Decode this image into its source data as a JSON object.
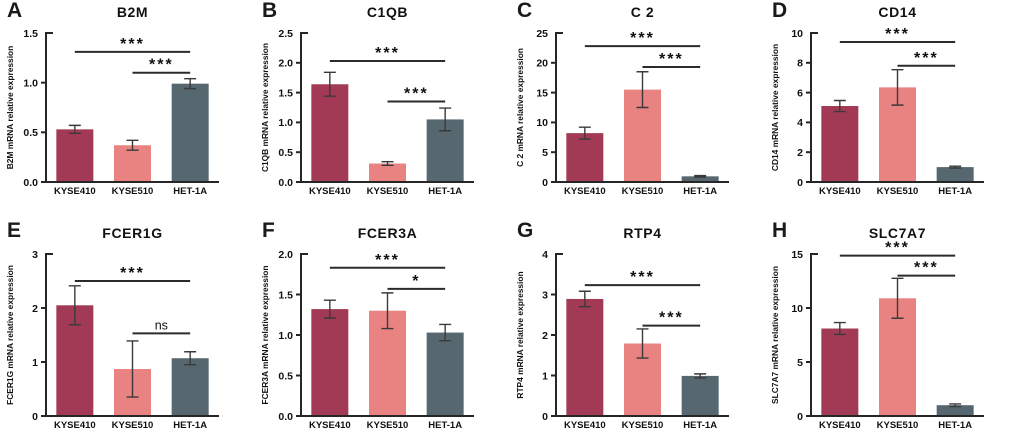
{
  "figure": {
    "description": "Eight-panel bar chart figure of mRNA relative expression in esophageal cell lines",
    "cell_lines": [
      "KYSE410",
      "KYSE510",
      "HET-1A"
    ],
    "colors": {
      "KYSE410": "#A33A55",
      "KYSE510": "#E98381",
      "HET-1A": "#56676F",
      "axis": "#262626",
      "error_bar": "#3a3a3a",
      "text": "#111111"
    }
  },
  "chart_data": [
    {
      "panel": "A",
      "type": "bar",
      "title": "B2M",
      "ylabel": "B2M mRNA relative expression",
      "xlabel": "",
      "categories": [
        "KYSE410",
        "KYSE510",
        "HET-1A"
      ],
      "values": [
        0.53,
        0.37,
        0.99
      ],
      "errors": [
        0.04,
        0.05,
        0.05
      ],
      "ylim": [
        0,
        1.5
      ],
      "yticks": [
        {
          "v": 0,
          "label": "0.0"
        },
        {
          "v": 0.5,
          "label": "0.5"
        },
        {
          "v": 1.0,
          "label": "1.0"
        },
        {
          "v": 1.5,
          "label": "1.5"
        }
      ],
      "comparisons": [
        {
          "from": 0,
          "to": 2,
          "label": "***",
          "y": 1.31
        },
        {
          "from": 1,
          "to": 2,
          "label": "***",
          "y": 1.1
        }
      ]
    },
    {
      "panel": "B",
      "type": "bar",
      "title": "C1QB",
      "ylabel": "C1QB mRNA relative expression",
      "xlabel": "",
      "categories": [
        "KYSE410",
        "KYSE510",
        "HET-1A"
      ],
      "values": [
        1.64,
        0.31,
        1.05
      ],
      "errors": [
        0.2,
        0.03,
        0.19
      ],
      "ylim": [
        0,
        2.5
      ],
      "yticks": [
        {
          "v": 0,
          "label": "0.0"
        },
        {
          "v": 0.5,
          "label": "0.5"
        },
        {
          "v": 1.0,
          "label": "1.0"
        },
        {
          "v": 1.5,
          "label": "1.5"
        },
        {
          "v": 2.0,
          "label": "2.0"
        },
        {
          "v": 2.5,
          "label": "2.5"
        }
      ],
      "comparisons": [
        {
          "from": 0,
          "to": 2,
          "label": "***",
          "y": 2.03
        },
        {
          "from": 1,
          "to": 2,
          "label": "***",
          "y": 1.35
        }
      ]
    },
    {
      "panel": "C",
      "type": "bar",
      "title": "C 2",
      "ylabel": "C 2 mRNA relative expression",
      "xlabel": "",
      "categories": [
        "KYSE410",
        "KYSE510",
        "HET-1A"
      ],
      "values": [
        8.2,
        15.5,
        0.95
      ],
      "errors": [
        1.0,
        3.0,
        0.12
      ],
      "ylim": [
        0,
        25
      ],
      "yticks": [
        {
          "v": 0,
          "label": "0"
        },
        {
          "v": 5,
          "label": "5"
        },
        {
          "v": 10,
          "label": "10"
        },
        {
          "v": 15,
          "label": "15"
        },
        {
          "v": 20,
          "label": "20"
        },
        {
          "v": 25,
          "label": "25"
        }
      ],
      "comparisons": [
        {
          "from": 0,
          "to": 2,
          "label": "***",
          "y": 22.8
        },
        {
          "from": 1,
          "to": 2,
          "label": "***",
          "y": 19.3
        }
      ]
    },
    {
      "panel": "D",
      "type": "bar",
      "title": "CD14",
      "ylabel": "CD14 mRNA relative expression",
      "xlabel": "",
      "categories": [
        "KYSE410",
        "KYSE510",
        "HET-1A"
      ],
      "values": [
        5.1,
        6.35,
        1.0
      ],
      "errors": [
        0.37,
        1.19,
        0.06
      ],
      "ylim": [
        0,
        10
      ],
      "yticks": [
        {
          "v": 0,
          "label": "0"
        },
        {
          "v": 2,
          "label": "2"
        },
        {
          "v": 4,
          "label": "4"
        },
        {
          "v": 6,
          "label": "6"
        },
        {
          "v": 8,
          "label": "8"
        },
        {
          "v": 10,
          "label": "10"
        }
      ],
      "comparisons": [
        {
          "from": 0,
          "to": 2,
          "label": "***",
          "y": 9.4
        },
        {
          "from": 1,
          "to": 2,
          "label": "***",
          "y": 7.8
        }
      ]
    },
    {
      "panel": "E",
      "type": "bar",
      "title": "FCER1G",
      "ylabel": "FCER1G mRNA relative expression",
      "xlabel": "",
      "categories": [
        "KYSE410",
        "KYSE510",
        "HET-1A"
      ],
      "values": [
        2.05,
        0.87,
        1.07
      ],
      "errors": [
        0.36,
        0.52,
        0.12
      ],
      "ylim": [
        0,
        3
      ],
      "yticks": [
        {
          "v": 0,
          "label": "0"
        },
        {
          "v": 1,
          "label": "1"
        },
        {
          "v": 2,
          "label": "2"
        },
        {
          "v": 3,
          "label": "3"
        }
      ],
      "comparisons": [
        {
          "from": 0,
          "to": 2,
          "label": "***",
          "y": 2.5
        },
        {
          "from": 1,
          "to": 2,
          "label": "ns",
          "y": 1.53
        }
      ]
    },
    {
      "panel": "F",
      "type": "bar",
      "title": "FCER3A",
      "ylabel": "FCER3A mRNA relative expression",
      "xlabel": "",
      "categories": [
        "KYSE410",
        "KYSE510",
        "HET-1A"
      ],
      "values": [
        1.32,
        1.3,
        1.03
      ],
      "errors": [
        0.11,
        0.22,
        0.1
      ],
      "ylim": [
        0,
        2.0
      ],
      "yticks": [
        {
          "v": 0,
          "label": "0.0"
        },
        {
          "v": 0.5,
          "label": "0.5"
        },
        {
          "v": 1.0,
          "label": "1.0"
        },
        {
          "v": 1.5,
          "label": "1.5"
        },
        {
          "v": 2.0,
          "label": "2.0"
        }
      ],
      "comparisons": [
        {
          "from": 0,
          "to": 2,
          "label": "***",
          "y": 1.83
        },
        {
          "from": 1,
          "to": 2,
          "label": "*",
          "y": 1.57
        }
      ]
    },
    {
      "panel": "G",
      "type": "bar",
      "title": "RTP4",
      "ylabel": "RTP4 mRNA relative expression",
      "xlabel": "",
      "categories": [
        "KYSE410",
        "KYSE510",
        "HET-1A"
      ],
      "values": [
        2.89,
        1.79,
        0.99
      ],
      "errors": [
        0.19,
        0.36,
        0.05
      ],
      "ylim": [
        0,
        4
      ],
      "yticks": [
        {
          "v": 0,
          "label": "0"
        },
        {
          "v": 1,
          "label": "1"
        },
        {
          "v": 2,
          "label": "2"
        },
        {
          "v": 3,
          "label": "3"
        },
        {
          "v": 4,
          "label": "4"
        }
      ],
      "comparisons": [
        {
          "from": 0,
          "to": 2,
          "label": "***",
          "y": 3.23
        },
        {
          "from": 1,
          "to": 2,
          "label": "***",
          "y": 2.23
        }
      ]
    },
    {
      "panel": "H",
      "type": "bar",
      "title": "SLC7A7",
      "ylabel": "SLC7A7 mRNA relative expression",
      "xlabel": "",
      "categories": [
        "KYSE410",
        "KYSE510",
        "HET-1A"
      ],
      "values": [
        8.1,
        10.9,
        1.0
      ],
      "errors": [
        0.55,
        1.85,
        0.12
      ],
      "ylim": [
        0,
        15
      ],
      "yticks": [
        {
          "v": 0,
          "label": "0"
        },
        {
          "v": 5,
          "label": "5"
        },
        {
          "v": 10,
          "label": "10"
        },
        {
          "v": 15,
          "label": "15"
        }
      ],
      "comparisons": [
        {
          "from": 0,
          "to": 2,
          "label": "***",
          "y": 14.85
        },
        {
          "from": 1,
          "to": 2,
          "label": "***",
          "y": 13.0
        }
      ]
    }
  ]
}
